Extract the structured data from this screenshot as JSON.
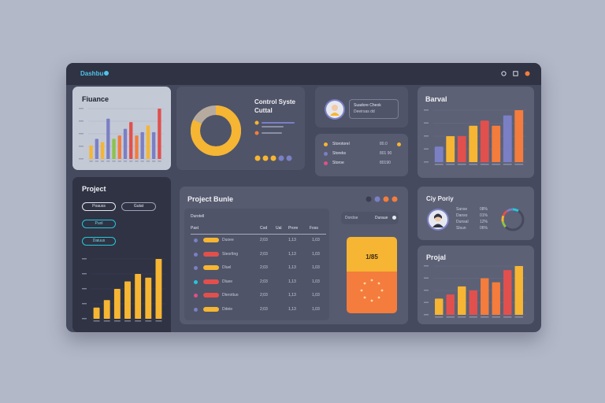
{
  "app": {
    "title": "Dashbu"
  },
  "finance": {
    "title": "Fiuance",
    "chart_data": {
      "type": "bar",
      "values": [
        4,
        6,
        5,
        12,
        6,
        7,
        9,
        11,
        7,
        8,
        10,
        8,
        15
      ],
      "colors": [
        "#f6b532",
        "#7b7fc4",
        "#f6b532",
        "#7b7fc4",
        "#8bc34a",
        "#f47c3c",
        "#7b7fc4",
        "#e1504d",
        "#f47c3c",
        "#7b7fc4",
        "#f6b532",
        "#7b7fc4",
        "#e1504d"
      ]
    }
  },
  "control": {
    "title_line1": "Control Syste",
    "title_line2": "Cuttal",
    "donut": {
      "value": 82,
      "colors": [
        "#f6b532",
        "#b7aba0"
      ]
    },
    "dot_colors": [
      "#f6b532",
      "#f6b532",
      "#f6b532",
      "#7b7fc4",
      "#7b7fc4"
    ]
  },
  "profile": {
    "line1": "Suadore Cheok",
    "line2": "Deeirsas dd"
  },
  "status_list": {
    "rows": [
      {
        "label": "Storotorel",
        "value": "80.0",
        "color": "#f6b532"
      },
      {
        "label": "Storeks",
        "value": "801 90",
        "color": "#7b7fc4"
      },
      {
        "label": "Storoe",
        "value": "80190",
        "color": "#e14f86"
      }
    ]
  },
  "barval": {
    "title": "Barval",
    "chart_data": {
      "type": "bar",
      "values": [
        3,
        5,
        5,
        7,
        8,
        7,
        9,
        10
      ],
      "colors": [
        "#7b7fc4",
        "#f6b532",
        "#e1504d",
        "#f6b532",
        "#e1504d",
        "#f47c3c",
        "#7b7fc4",
        "#f47c3c"
      ]
    }
  },
  "project_side": {
    "title": "Project",
    "buttons": [
      "Poauss",
      "Gutat"
    ],
    "chips": [
      "Puol",
      "Daiuus"
    ],
    "chart_data": {
      "type": "bar",
      "values": [
        3,
        5,
        8,
        10,
        12,
        11,
        16
      ],
      "colors": [
        "#f6b532",
        "#f6b532",
        "#f6b532",
        "#f6b532",
        "#f6b532",
        "#f6b532",
        "#f6b532"
      ]
    }
  },
  "project_table": {
    "title": "Project Bunle",
    "header_dot_colors": [
      "#3a3e50",
      "#7b7fc4",
      "#f47c3c",
      "#f47c3c"
    ],
    "subtitle": "Durotell",
    "columns": [
      "Past",
      "Cod",
      "Ual",
      "Prore",
      "Foss"
    ],
    "rows": [
      {
        "icon_color": "#7b7fc4",
        "bar_color": "#f6b532",
        "name": "Duoee",
        "c1": "2;03",
        "c2": "1,13",
        "c3": "1,03"
      },
      {
        "icon_color": "#7b7fc4",
        "bar_color": "#e1504d",
        "name": "Steorltng",
        "c1": "2;03",
        "c2": "1,13",
        "c3": "1,03"
      },
      {
        "icon_color": "#7b7fc4",
        "bar_color": "#f6b532",
        "name": "Dluel",
        "c1": "2;03",
        "c2": "1,13",
        "c3": "1,03"
      },
      {
        "icon_color": "#26c6da",
        "bar_color": "#e1504d",
        "name": "Dluee",
        "c1": "2;03",
        "c2": "1,13",
        "c3": "1,03"
      },
      {
        "icon_color": "#e14f86",
        "bar_color": "#e1504d",
        "name": "Dterottuo",
        "c1": "2;03",
        "c2": "1,13",
        "c3": "1,03"
      },
      {
        "icon_color": "#7b7fc4",
        "bar_color": "#f6b532",
        "name": "Ddeie",
        "c1": "2;03",
        "c2": "1,13",
        "c3": "1,03"
      }
    ],
    "toggle": [
      "Dordoe",
      "Duraue"
    ],
    "highlight_value": "1/85",
    "highlight_colors": [
      "#f6b532",
      "#f47c3c"
    ]
  },
  "city": {
    "title": "Ciy Poriy",
    "stats": [
      {
        "label": "Sanse",
        "value": "08%"
      },
      {
        "label": "Danso",
        "value": "01%"
      },
      {
        "label": "Dunsal",
        "value": "12%"
      },
      {
        "label": "Slsun",
        "value": "06%"
      }
    ],
    "gauge": {
      "value": 62,
      "colors": [
        "#8bc34a",
        "#f6b532",
        "#e1504d",
        "#7b7fc4",
        "#26c6da"
      ]
    }
  },
  "projal": {
    "title": "Projal",
    "chart_data": {
      "type": "bar",
      "values": [
        4,
        5,
        7,
        6,
        9,
        8,
        11,
        12
      ],
      "colors": [
        "#f6b532",
        "#e1504d",
        "#f6b532",
        "#e1504d",
        "#f47c3c",
        "#f47c3c",
        "#e1504d",
        "#f6b532"
      ]
    }
  }
}
